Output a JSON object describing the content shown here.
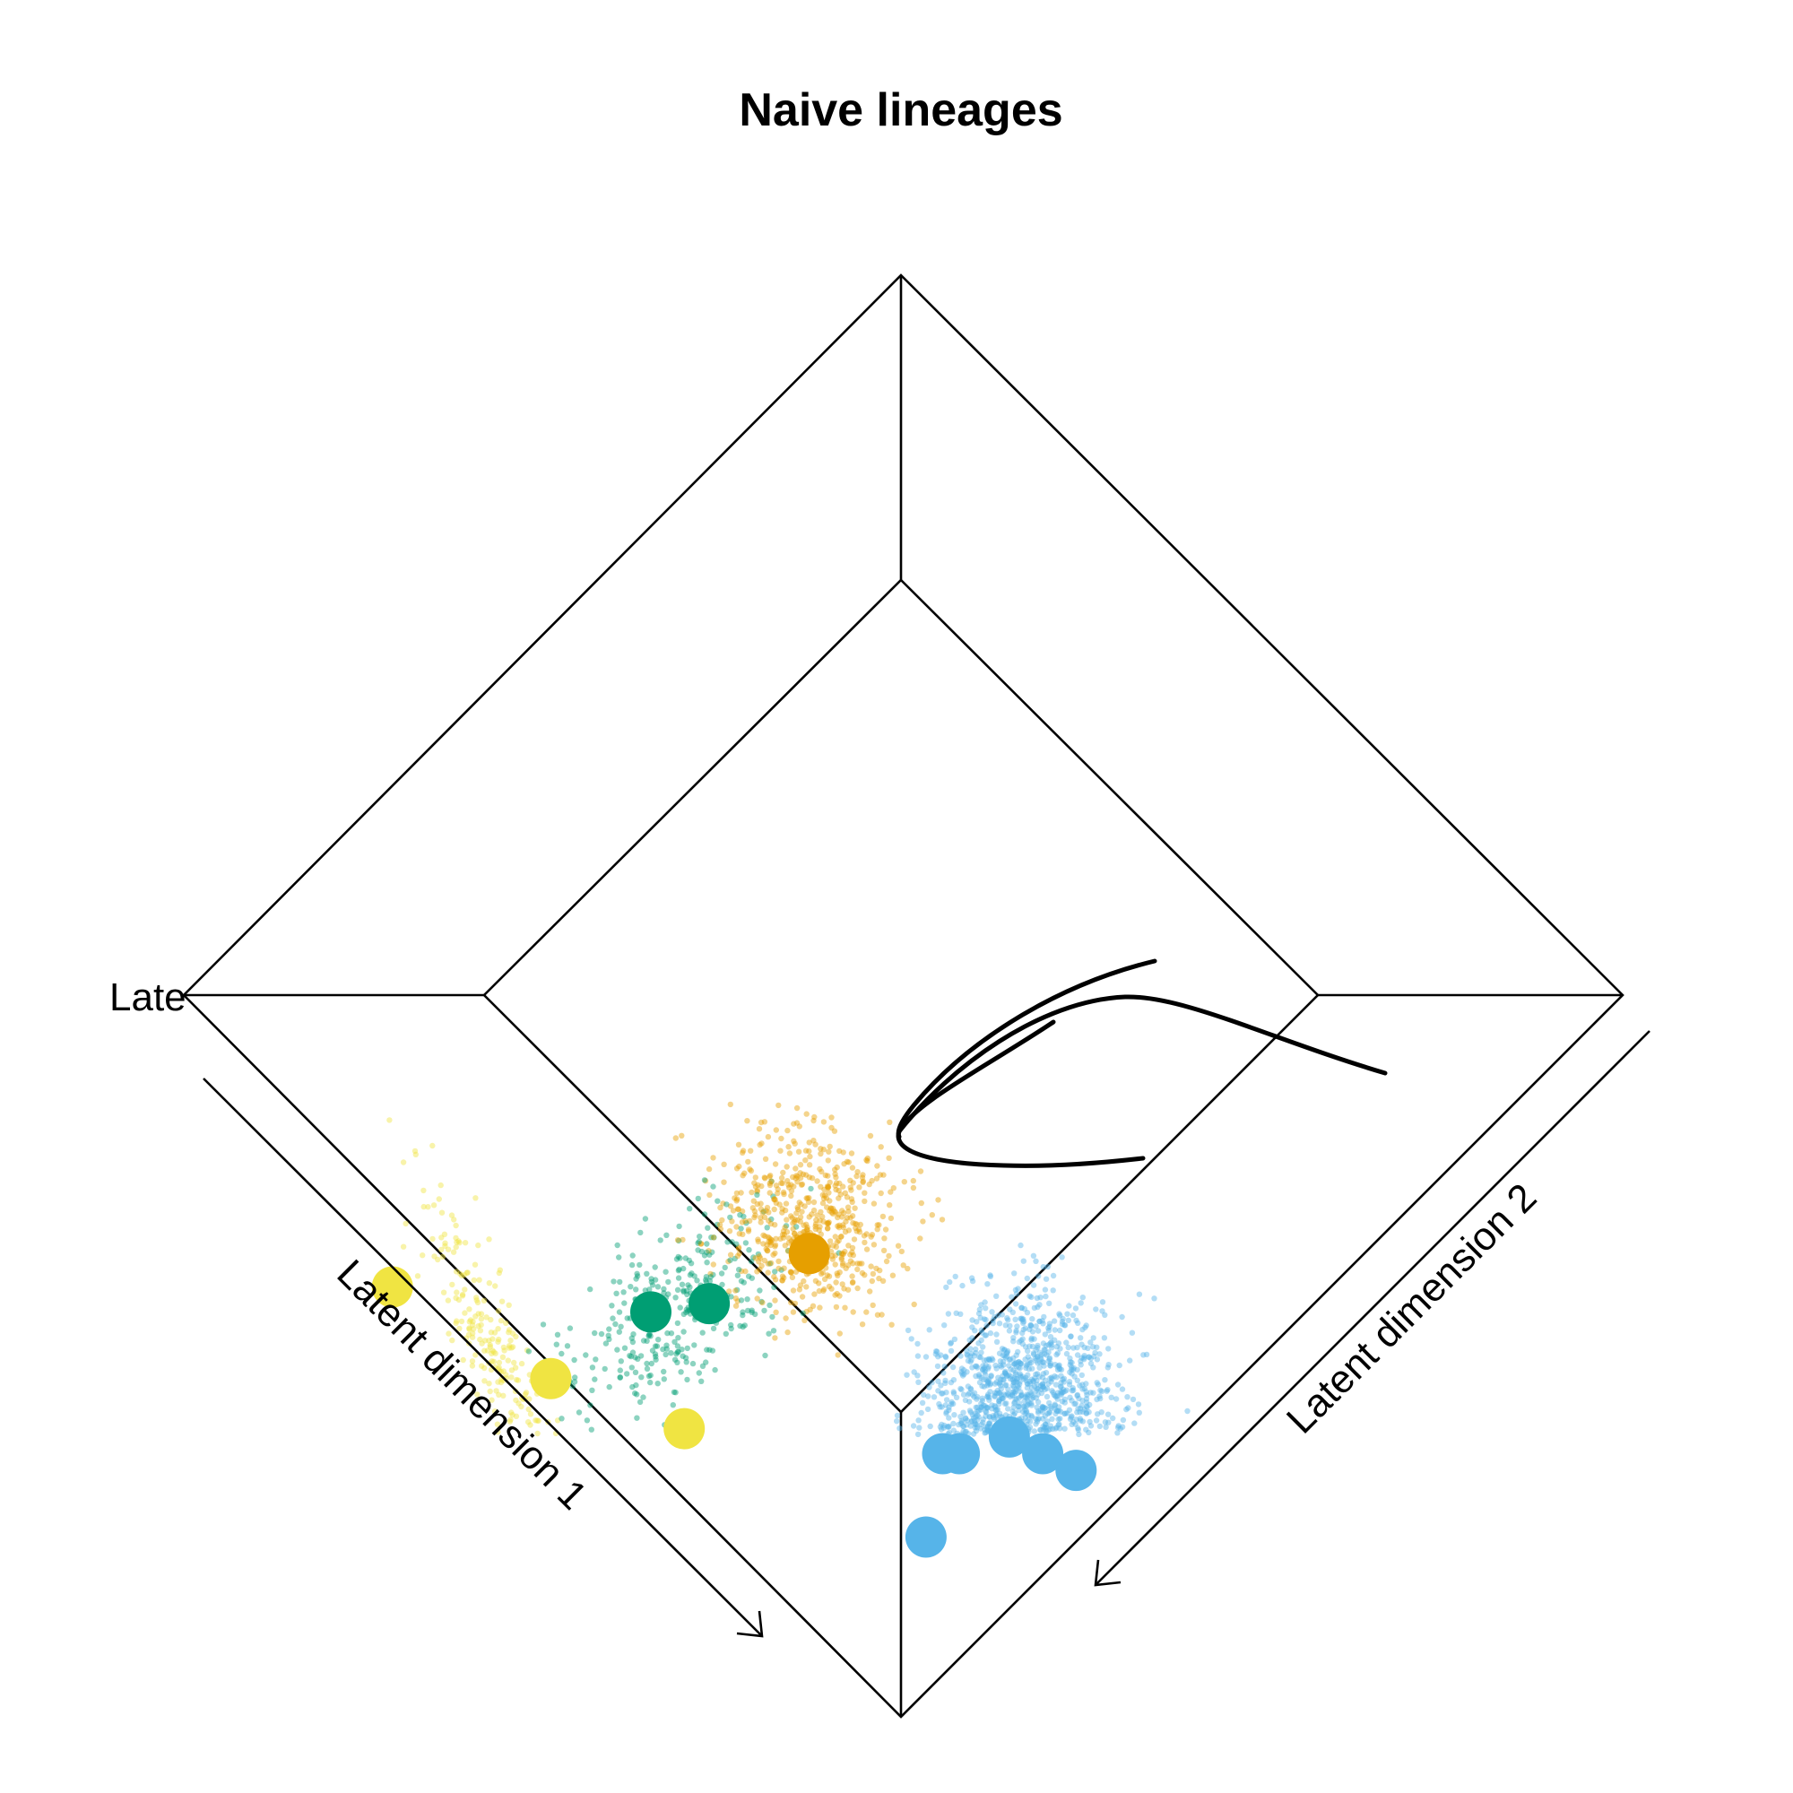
{
  "chart_data": {
    "type": "scatter",
    "projection": "3d-perspective",
    "title": "Naive lineages",
    "axis_labels": {
      "x": "Latent dimension 1",
      "y": "Latent dimension 2",
      "z_truncated": "Late"
    },
    "grid": false,
    "legend": "none",
    "series": [
      {
        "color": "#56B4E9",
        "point_count": 1500,
        "centroids": [
          [
            0.72,
            0.38
          ],
          [
            0.78,
            0.36
          ],
          [
            0.66,
            0.4
          ],
          [
            0.6,
            0.5
          ],
          [
            0.62,
            0.48
          ],
          [
            0.68,
            0.62
          ]
        ]
      },
      {
        "color": "#E69F00",
        "point_count": 600,
        "centroids": [
          [
            0.2,
            0.42
          ]
        ]
      },
      {
        "color": "#009E73",
        "point_count": 350,
        "centroids": [
          [
            0.14,
            0.6
          ],
          [
            0.08,
            0.68
          ]
        ]
      },
      {
        "color": "#F0E442",
        "point_count": 250,
        "centroids": [
          [
            -0.26,
            0.96
          ],
          [
            0.04,
            0.88
          ],
          [
            0.26,
            0.78
          ]
        ]
      }
    ],
    "principal_curves": 3
  }
}
